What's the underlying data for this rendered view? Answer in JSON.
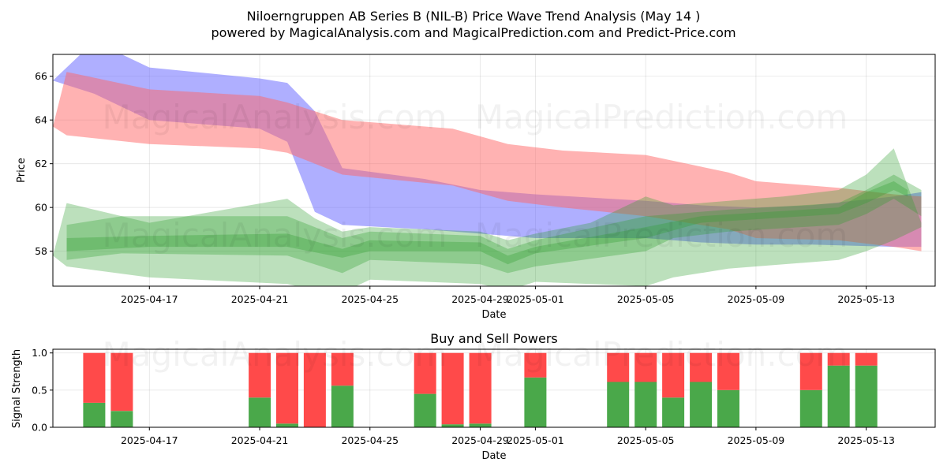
{
  "title_line1": "Niloerngruppen AB Series B (NIL-B) Price Wave Trend Analysis (May 14 )",
  "title_line2": "powered by MagicalAnalysis.com and MagicalPrediction.com and Predict-Price.com",
  "watermarks": {
    "top": [
      "MagicalAnalysis.com",
      "MagicalPrediction.com"
    ],
    "middle": [
      "MagicalAnalysis.com",
      "MagicalPrediction.com"
    ],
    "bottom": [
      "MagicalAnalysis.com",
      "MagicalPrediction.com"
    ]
  },
  "colors": {
    "blue_band": "#6666ff",
    "red_band": "#ff6666",
    "green_band": "#2e9e2e",
    "buy": "#4aa84a",
    "sell": "#ff4a4a"
  },
  "chart_data": [
    {
      "type": "area",
      "title": "",
      "xlabel": "Date",
      "ylabel": "Price",
      "xlim": [
        "2025-04-13T12:00",
        "2025-05-15T12:00"
      ],
      "ylim": [
        56.4,
        67.0
      ],
      "grid": true,
      "x_ticks": [
        "2025-04-17",
        "2025-04-21",
        "2025-04-25",
        "2025-04-29",
        "2025-05-01",
        "2025-05-05",
        "2025-05-09",
        "2025-05-13"
      ],
      "y_ticks": [
        58,
        60,
        62,
        64,
        66
      ],
      "bands": [
        {
          "color": "blue",
          "x": [
            "2025-04-13T12:00",
            "2025-04-15",
            "2025-04-17",
            "2025-04-21",
            "2025-04-22",
            "2025-04-23",
            "2025-04-24",
            "2025-04-27",
            "2025-04-29",
            "2025-04-30",
            "2025-05-01",
            "2025-05-05",
            "2025-05-07",
            "2025-05-09",
            "2025-05-11",
            "2025-05-14",
            "2025-05-15"
          ],
          "upper": [
            65.8,
            67.6,
            66.4,
            65.9,
            65.7,
            64.4,
            61.8,
            61.3,
            60.8,
            60.7,
            60.6,
            60.3,
            60.1,
            60.0,
            60.1,
            60.5,
            60.7
          ],
          "lower": [
            65.8,
            65.2,
            64.0,
            63.6,
            63.0,
            59.8,
            59.2,
            59.0,
            58.8,
            58.7,
            58.6,
            58.6,
            58.4,
            58.3,
            58.3,
            58.2,
            58.2
          ]
        },
        {
          "color": "red",
          "x": [
            "2025-04-13T12:00",
            "2025-04-14",
            "2025-04-17",
            "2025-04-21",
            "2025-04-22",
            "2025-04-24",
            "2025-04-28",
            "2025-04-30",
            "2025-05-02",
            "2025-05-05",
            "2025-05-08",
            "2025-05-09",
            "2025-05-12",
            "2025-05-14",
            "2025-05-15"
          ],
          "upper": [
            63.7,
            66.2,
            65.4,
            65.1,
            64.8,
            64.0,
            63.6,
            62.9,
            62.6,
            62.4,
            61.6,
            61.2,
            60.9,
            60.6,
            60.5
          ],
          "lower": [
            63.7,
            63.3,
            62.9,
            62.7,
            62.5,
            61.5,
            61.0,
            60.3,
            60.0,
            59.6,
            59.0,
            58.6,
            58.5,
            58.2,
            58.0
          ]
        },
        {
          "color": "green",
          "x": [
            "2025-04-13T12:00",
            "2025-04-14",
            "2025-04-17",
            "2025-04-22",
            "2025-04-23",
            "2025-04-24",
            "2025-04-25",
            "2025-04-29",
            "2025-04-30",
            "2025-05-01",
            "2025-05-03",
            "2025-05-05",
            "2025-05-06",
            "2025-05-08",
            "2025-05-10",
            "2025-05-12",
            "2025-05-13",
            "2025-05-14",
            "2025-05-15"
          ],
          "upper": [
            57.8,
            60.2,
            59.3,
            60.4,
            59.5,
            58.9,
            59.1,
            58.9,
            58.5,
            58.8,
            59.3,
            60.5,
            60.1,
            60.3,
            60.5,
            60.8,
            61.5,
            62.7,
            59.3
          ],
          "lower": [
            57.8,
            57.3,
            56.8,
            56.5,
            56.2,
            56.1,
            56.7,
            56.5,
            56.2,
            56.6,
            56.5,
            56.4,
            56.8,
            57.2,
            57.4,
            57.6,
            58.0,
            58.5,
            59.1
          ]
        },
        {
          "color": "green",
          "x": [
            "2025-04-14",
            "2025-04-16",
            "2025-04-22",
            "2025-04-24",
            "2025-04-25",
            "2025-04-29",
            "2025-04-30",
            "2025-05-01",
            "2025-05-05",
            "2025-05-06",
            "2025-05-08",
            "2025-05-12",
            "2025-05-13",
            "2025-05-14",
            "2025-05-15"
          ],
          "upper": [
            59.2,
            59.6,
            59.6,
            58.6,
            58.9,
            58.7,
            58.1,
            58.5,
            59.6,
            59.7,
            59.9,
            60.2,
            60.8,
            61.5,
            60.8
          ],
          "lower": [
            57.6,
            57.9,
            57.8,
            57.0,
            57.6,
            57.4,
            57.0,
            57.3,
            58.0,
            58.6,
            58.9,
            59.2,
            59.7,
            60.4,
            59.6
          ]
        },
        {
          "color": "green",
          "x": [
            "2025-04-14",
            "2025-04-17",
            "2025-04-22",
            "2025-04-24",
            "2025-04-25",
            "2025-04-29",
            "2025-04-30",
            "2025-05-01",
            "2025-05-05",
            "2025-05-07",
            "2025-05-12",
            "2025-05-13",
            "2025-05-14",
            "2025-05-14T12:00"
          ],
          "upper": [
            58.6,
            58.7,
            58.8,
            58.1,
            58.5,
            58.4,
            57.8,
            58.2,
            59.1,
            59.6,
            60.0,
            60.7,
            61.2,
            60.8
          ],
          "lower": [
            58.0,
            58.2,
            58.2,
            57.7,
            58.0,
            58.0,
            57.4,
            57.9,
            58.6,
            59.3,
            59.7,
            60.2,
            60.8,
            60.5
          ]
        }
      ]
    },
    {
      "type": "bar",
      "title": "Buy and Sell Powers",
      "xlabel": "Date",
      "ylabel": "Signal Strength",
      "xlim": [
        "2025-04-13T12:00",
        "2025-05-15T12:00"
      ],
      "ylim": [
        0,
        1.05
      ],
      "grid": true,
      "x_ticks": [
        "2025-04-17",
        "2025-04-21",
        "2025-04-25",
        "2025-04-29",
        "2025-05-01",
        "2025-05-05",
        "2025-05-09",
        "2025-05-13"
      ],
      "y_ticks": [
        "0.0",
        "0.5",
        "1.0"
      ],
      "dates": [
        "2025-04-15",
        "2025-04-16",
        "2025-04-21",
        "2025-04-22",
        "2025-04-23",
        "2025-04-24",
        "2025-04-27",
        "2025-04-28",
        "2025-04-29",
        "2025-05-01",
        "2025-05-04",
        "2025-05-05",
        "2025-05-06",
        "2025-05-07",
        "2025-05-08",
        "2025-05-11",
        "2025-05-12",
        "2025-05-13"
      ],
      "series": [
        {
          "name": "Buy",
          "values": [
            0.33,
            0.22,
            0.4,
            0.05,
            0.0,
            0.56,
            0.45,
            0.04,
            0.05,
            0.67,
            0.61,
            0.61,
            0.4,
            0.61,
            0.5,
            0.5,
            0.83,
            0.83
          ]
        },
        {
          "name": "Sell",
          "values": [
            0.67,
            0.78,
            0.6,
            0.95,
            1.0,
            0.44,
            0.55,
            0.96,
            0.95,
            0.33,
            0.39,
            0.39,
            0.6,
            0.39,
            0.5,
            0.5,
            0.17,
            0.17
          ]
        }
      ]
    }
  ]
}
